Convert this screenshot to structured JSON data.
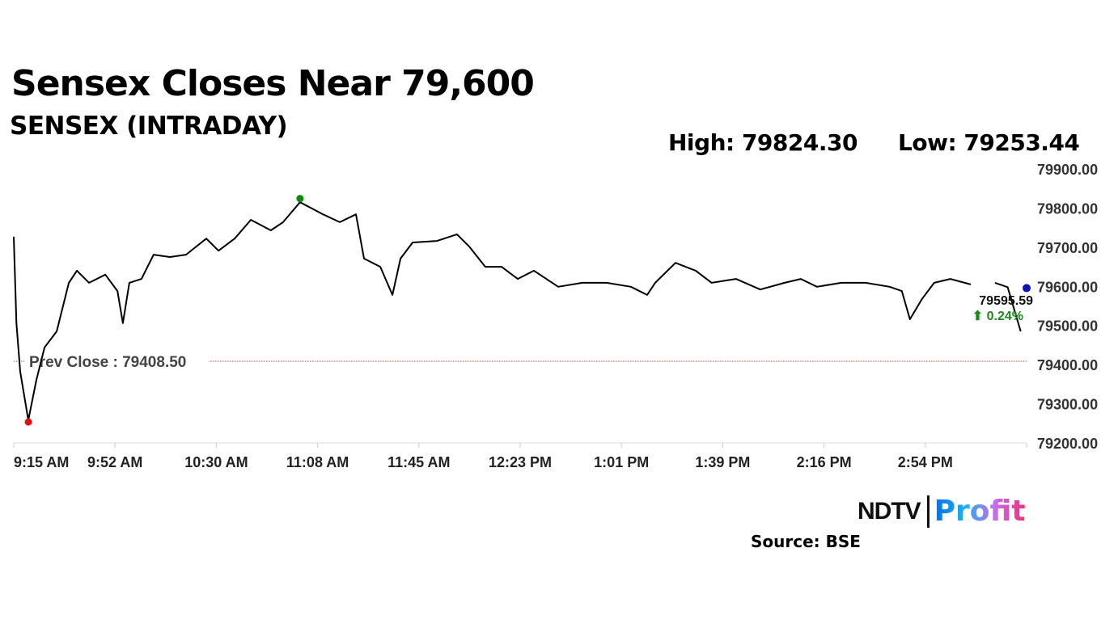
{
  "chart_data": {
    "type": "line",
    "title": "Sensex Closes Near 79,600",
    "subtitle": "SENSEX (INTRADAY)",
    "high_label": "High: 79824.30",
    "low_label": "Low: 79253.44",
    "x_unit": "minutes since 9:15 AM",
    "xlim": [
      0,
      375
    ],
    "ylim": [
      79200,
      79900
    ],
    "y_ticks": [
      79900,
      79800,
      79700,
      79600,
      79500,
      79400,
      79300,
      79200
    ],
    "y_tick_labels": [
      "79900.00",
      "79800.00",
      "79700.00",
      "79600.00",
      "79500.00",
      "79400.00",
      "79300.00",
      "79200.00"
    ],
    "x_tick_labels": [
      "9:15 AM",
      "9:52 AM",
      "10:30 AM",
      "11:08 AM",
      "11:45 AM",
      "12:23 PM",
      "1:01 PM",
      "1:39 PM",
      "2:16 PM",
      "2:54 PM"
    ],
    "prev_close": 79408.5,
    "prev_close_label": "Prev Close : 79408.50",
    "last_value_label": "79595.59",
    "change_label": "⬆ 0.24%",
    "high": {
      "x": 106,
      "y": 79824.3
    },
    "low": {
      "x": 5.4,
      "y": 79253.44
    },
    "close": {
      "x": 375,
      "y": 79595.59
    },
    "series": [
      {
        "name": "SENSEX",
        "x": [
          0,
          1,
          2.4,
          5.4,
          8.4,
          11.4,
          15.9,
          20.4,
          23.4,
          27.9,
          33.9,
          38.4,
          40.4,
          42.8,
          47.3,
          51.8,
          57.8,
          63.8,
          71.3,
          75.8,
          81.8,
          87.8,
          95.2,
          99.7,
          106,
          114.5,
          120.7,
          126.7,
          129.7,
          135.7,
          140.2,
          143.2,
          147.7,
          156.7,
          164.1,
          168.6,
          174.6,
          180.6,
          186.6,
          192.6,
          201.6,
          210.5,
          219.5,
          228.5,
          234.5,
          237.5,
          245,
          252.5,
          258.4,
          267.4,
          276.4,
          285.4,
          291.4,
          297.4,
          306.4,
          315.4,
          324.3,
          328.8,
          331.8,
          336.3,
          340.8,
          346.8,
          354.3
        ],
        "y": [
          79727,
          79506,
          79382,
          79258,
          79361,
          79444,
          79485,
          79609,
          79640,
          79609,
          79630,
          79588,
          79506,
          79609,
          79619,
          79681,
          79675,
          79681,
          79722,
          79691,
          79722,
          79770,
          79743,
          79764,
          79815,
          79784,
          79764,
          79784,
          79671,
          79650,
          79578,
          79671,
          79712,
          79716,
          79733,
          79702,
          79650,
          79650,
          79619,
          79640,
          79599,
          79609,
          79609,
          79599,
          79578,
          79609,
          79660,
          79640,
          79609,
          79619,
          79592,
          79609,
          79619,
          79599,
          79609,
          79609,
          79599,
          79588,
          79516,
          79568,
          79609,
          79619,
          79605
        ]
      },
      {
        "name": "SENSEX-late",
        "x": [
          363.3,
          368,
          372.8
        ],
        "y": [
          79609,
          79598,
          79485
        ]
      }
    ],
    "colors": {
      "line": "#000000",
      "high": "#0a8a0a",
      "low": "#e01010",
      "close": "#1010c0",
      "prev_close": "#d04040",
      "change": "#1a8a1a"
    }
  },
  "footer": {
    "logo_left": "NDTV",
    "logo_right": "Profit",
    "source": "Source: BSE"
  }
}
